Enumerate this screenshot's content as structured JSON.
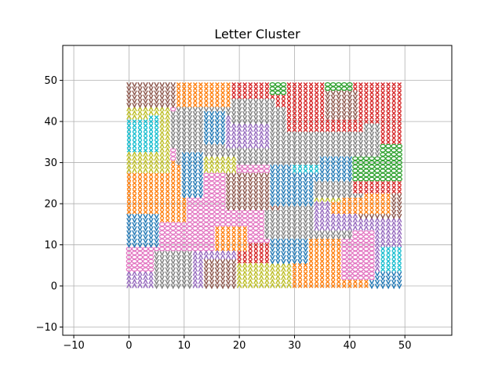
{
  "chart_data": {
    "type": "scatter",
    "title": "Letter Cluster",
    "xlabel": "",
    "ylabel": "",
    "xlim": [
      -12,
      58.5
    ],
    "ylim": [
      -12,
      58.5
    ],
    "xticks": [
      -10,
      0,
      10,
      20,
      30,
      40,
      50
    ],
    "yticks": [
      -10,
      0,
      10,
      20,
      30,
      40,
      50
    ],
    "grid": true,
    "grid_range": {
      "x": [
        0,
        49
      ],
      "y": [
        0,
        49
      ]
    },
    "marker": "letter glyphs on a unit grid",
    "palette": [
      "#1f77b4",
      "#ff7f0e",
      "#2ca02c",
      "#d62728",
      "#9467bd",
      "#8c564b",
      "#e377c2",
      "#7f7f7f",
      "#bcbd22",
      "#17becf"
    ],
    "regions": [
      {
        "color": "#e377c2",
        "x": [
          0,
          32
        ],
        "y": [
          0,
          30
        ]
      },
      {
        "color": "#ff7f0e",
        "x": [
          0,
          10
        ],
        "y": [
          16,
          30
        ]
      },
      {
        "color": "#1f77b4",
        "x": [
          0,
          5
        ],
        "y": [
          10,
          17
        ]
      },
      {
        "color": "#9467bd",
        "x": [
          0,
          10
        ],
        "y": [
          0,
          3
        ]
      },
      {
        "color": "#7f7f7f",
        "x": [
          5,
          12
        ],
        "y": [
          0,
          8
        ]
      },
      {
        "color": "#9467bd",
        "x": [
          12,
          20
        ],
        "y": [
          0,
          8
        ]
      },
      {
        "color": "#8c564b",
        "x": [
          14,
          20
        ],
        "y": [
          0,
          6
        ]
      },
      {
        "color": "#bcbd22",
        "x": [
          20,
          30
        ],
        "y": [
          0,
          6
        ]
      },
      {
        "color": "#d62728",
        "x": [
          20,
          28
        ],
        "y": [
          6,
          10
        ]
      },
      {
        "color": "#ff7f0e",
        "x": [
          30,
          43
        ],
        "y": [
          0,
          10
        ]
      },
      {
        "color": "#ff7f0e",
        "x": [
          33,
          40
        ],
        "y": [
          7,
          13
        ]
      },
      {
        "color": "#9467bd",
        "x": [
          42,
          49
        ],
        "y": [
          3,
          14
        ]
      },
      {
        "color": "#17becf",
        "x": [
          46,
          49
        ],
        "y": [
          2,
          9
        ]
      },
      {
        "color": "#1f77b4",
        "x": [
          44,
          49
        ],
        "y": [
          0,
          3
        ]
      },
      {
        "color": "#e377c2",
        "x": [
          39,
          44
        ],
        "y": [
          2,
          14
        ]
      },
      {
        "color": "#1f77b4",
        "x": [
          26,
          32
        ],
        "y": [
          6,
          14
        ]
      },
      {
        "color": "#ff7f0e",
        "x": [
          16,
          21
        ],
        "y": [
          9,
          14
        ]
      },
      {
        "color": "#7f7f7f",
        "x": [
          25,
          40
        ],
        "y": [
          12,
          20
        ]
      },
      {
        "color": "#9467bd",
        "x": [
          34,
          49
        ],
        "y": [
          14,
          21
        ]
      },
      {
        "color": "#8c564b",
        "x": [
          18,
          27
        ],
        "y": [
          19,
          27
        ]
      },
      {
        "color": "#8c564b",
        "x": [
          42,
          49
        ],
        "y": [
          17,
          22
        ]
      },
      {
        "color": "#ff7f0e",
        "x": [
          37,
          47
        ],
        "y": [
          18,
          23
        ]
      },
      {
        "color": "#bcbd22",
        "x": [
          26,
          38
        ],
        "y": [
          21,
          33
        ]
      },
      {
        "color": "#1f77b4",
        "x": [
          26,
          33
        ],
        "y": [
          20,
          32
        ]
      },
      {
        "color": "#7f7f7f",
        "x": [
          34,
          42
        ],
        "y": [
          22,
          33
        ]
      },
      {
        "color": "#1f77b4",
        "x": [
          34,
          40
        ],
        "y": [
          26,
          37
        ]
      },
      {
        "color": "#d62728",
        "x": [
          41,
          49
        ],
        "y": [
          23,
          30
        ]
      },
      {
        "color": "#2ca02c",
        "x": [
          41,
          49
        ],
        "y": [
          26,
          35
        ]
      },
      {
        "color": "#d62728",
        "x": [
          42,
          49
        ],
        "y": [
          35,
          41
        ]
      },
      {
        "color": "#7f7f7f",
        "x": [
          34,
          45
        ],
        "y": [
          32,
          40
        ]
      },
      {
        "color": "#17becf",
        "x": [
          30,
          34
        ],
        "y": [
          28,
          34
        ]
      },
      {
        "color": "#7f7f7f",
        "x": [
          12,
          34
        ],
        "y": [
          30,
          43
        ]
      },
      {
        "color": "#9467bd",
        "x": [
          18,
          25
        ],
        "y": [
          34,
          41
        ]
      },
      {
        "color": "#1f77b4",
        "x": [
          13,
          17
        ],
        "y": [
          35,
          42
        ]
      },
      {
        "color": "#bcbd22",
        "x": [
          14,
          19
        ],
        "y": [
          28,
          31
        ]
      },
      {
        "color": "#7f7f7f",
        "x": [
          9,
          13
        ],
        "y": [
          30,
          45
        ]
      },
      {
        "color": "#7f7f7f",
        "x": [
          6,
          12
        ],
        "y": [
          34,
          42
        ]
      },
      {
        "color": "#1f77b4",
        "x": [
          10,
          13
        ],
        "y": [
          22,
          32
        ]
      },
      {
        "color": "#bcbd22",
        "x": [
          0,
          7
        ],
        "y": [
          28,
          44
        ]
      },
      {
        "color": "#17becf",
        "x": [
          0,
          5
        ],
        "y": [
          33,
          41
        ]
      },
      {
        "color": "#bcbd22",
        "x": [
          0,
          3
        ],
        "y": [
          41,
          46
        ]
      },
      {
        "color": "#8c564b",
        "x": [
          0,
          9
        ],
        "y": [
          44,
          49
        ]
      },
      {
        "color": "#ff7f0e",
        "x": [
          9,
          19
        ],
        "y": [
          44,
          49
        ]
      },
      {
        "color": "#d62728",
        "x": [
          19,
          31
        ],
        "y": [
          44,
          49
        ]
      },
      {
        "color": "#7f7f7f",
        "x": [
          19,
          26
        ],
        "y": [
          40,
          45
        ]
      },
      {
        "color": "#2ca02c",
        "x": [
          26,
          31
        ],
        "y": [
          47,
          49
        ]
      },
      {
        "color": "#d62728",
        "x": [
          29,
          42
        ],
        "y": [
          38,
          49
        ]
      },
      {
        "color": "#2ca02c",
        "x": [
          36,
          40
        ],
        "y": [
          42,
          49
        ]
      },
      {
        "color": "#d62728",
        "x": [
          41,
          49
        ],
        "y": [
          40,
          49
        ]
      },
      {
        "color": "#8c564b",
        "x": [
          36,
          41
        ],
        "y": [
          41,
          47
        ]
      }
    ]
  }
}
